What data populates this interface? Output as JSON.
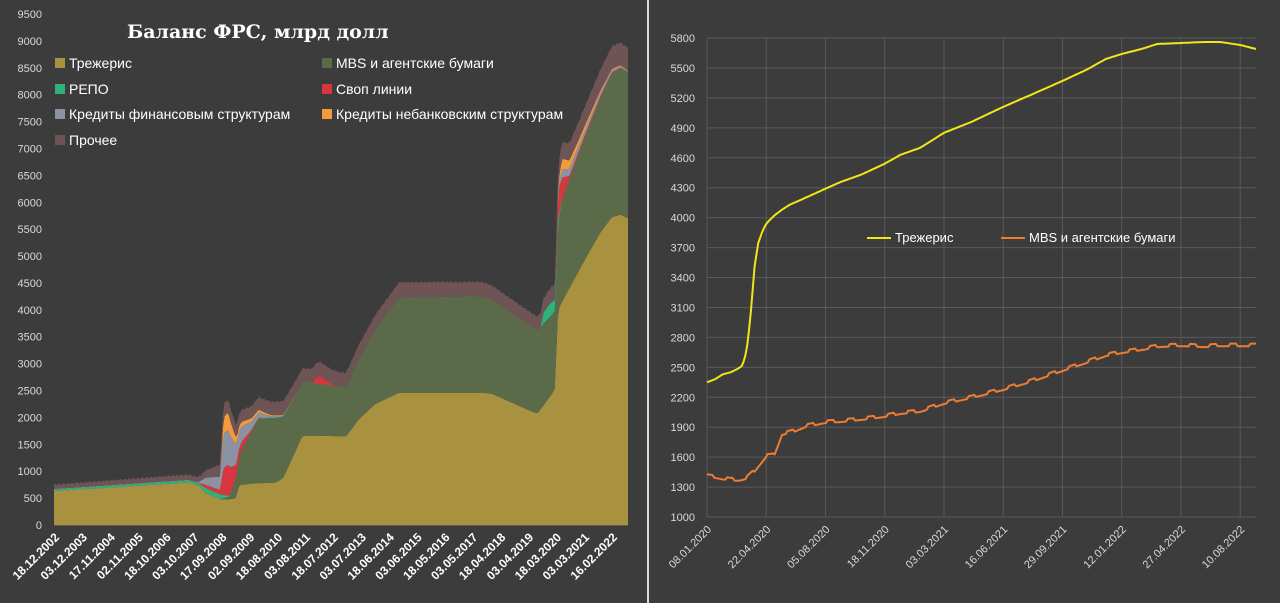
{
  "colors": {
    "background": "#3c3c3c",
    "treasuries": "#a89240",
    "mbs": "#5b6b4a",
    "repo": "#2fb27a",
    "swaps": "#d8363e",
    "fin_credits": "#8a92a3",
    "nonbank_credits": "#f39a3c",
    "other": "#6f5456",
    "yellow_line": "#f0e61a",
    "orange_line": "#ec7d31"
  },
  "chart_data": [
    {
      "type": "area",
      "stacked": true,
      "title": "Баланс ФРС, млрд долл",
      "legend_placement": "top-left",
      "ylim": [
        0,
        9500
      ],
      "yticks": [
        "0",
        "500",
        "1000",
        "1500",
        "2000",
        "2500",
        "3000",
        "3500",
        "4000",
        "4500",
        "5000",
        "5500",
        "6000",
        "6500",
        "7000",
        "7500",
        "8000",
        "8500",
        "9000",
        "9500"
      ],
      "xlim": [
        "2002-12-18",
        "2022-09-07"
      ],
      "xticks": [
        {
          "label": "18.12.2002",
          "date": "2002-12-18"
        },
        {
          "label": "03.12.2003",
          "date": "2003-12-03"
        },
        {
          "label": "17.11.2004",
          "date": "2004-11-17"
        },
        {
          "label": "02.11.2005",
          "date": "2005-11-02"
        },
        {
          "label": "18.10.2006",
          "date": "2006-10-18"
        },
        {
          "label": "03.10.2007",
          "date": "2007-10-03"
        },
        {
          "label": "17.09.2008",
          "date": "2008-09-17"
        },
        {
          "label": "02.09.2009",
          "date": "2009-09-02"
        },
        {
          "label": "18.08.2010",
          "date": "2010-08-18"
        },
        {
          "label": "03.08.2011",
          "date": "2011-08-03"
        },
        {
          "label": "18.07.2012",
          "date": "2012-07-18"
        },
        {
          "label": "03.07.2013",
          "date": "2013-07-03"
        },
        {
          "label": "18.06.2014",
          "date": "2014-06-18"
        },
        {
          "label": "03.06.2015",
          "date": "2015-06-03"
        },
        {
          "label": "18.05.2016",
          "date": "2016-05-18"
        },
        {
          "label": "03.05.2017",
          "date": "2017-05-03"
        },
        {
          "label": "18.04.2018",
          "date": "2018-04-18"
        },
        {
          "label": "03.04.2019",
          "date": "2019-04-03"
        },
        {
          "label": "18.03.2020",
          "date": "2020-03-18"
        },
        {
          "label": "03.03.2021",
          "date": "2021-03-03"
        },
        {
          "label": "16.02.2022",
          "date": "2022-02-16"
        }
      ],
      "series": [
        {
          "name": "Трежерис",
          "key": "treasuries",
          "points": [
            [
              "2002-12-18",
              630
            ],
            [
              "2007-08-01",
              790
            ],
            [
              "2007-12-01",
              740
            ],
            [
              "2008-03-01",
              600
            ],
            [
              "2008-09-01",
              480
            ],
            [
              "2009-01-01",
              480
            ],
            [
              "2009-03-15",
              500
            ],
            [
              "2009-05-01",
              740
            ],
            [
              "2009-10-01",
              770
            ],
            [
              "2010-08-01",
              790
            ],
            [
              "2010-11-01",
              870
            ],
            [
              "2011-06-30",
              1650
            ],
            [
              "2011-10-01",
              1660
            ],
            [
              "2012-12-31",
              1650
            ],
            [
              "2013-06-01",
              1950
            ],
            [
              "2014-01-01",
              2250
            ],
            [
              "2014-10-29",
              2460
            ],
            [
              "2017-09-01",
              2460
            ],
            [
              "2018-01-01",
              2440
            ],
            [
              "2019-06-01",
              2100
            ],
            [
              "2019-08-01",
              2080
            ],
            [
              "2019-10-01",
              2200
            ],
            [
              "2020-02-01",
              2450
            ],
            [
              "2020-03-11",
              2560
            ],
            [
              "2020-03-18",
              3050
            ],
            [
              "2020-04-01",
              3800
            ],
            [
              "2020-05-01",
              4050
            ],
            [
              "2020-06-01",
              4150
            ],
            [
              "2021-03-03",
              4900
            ],
            [
              "2021-10-01",
              5450
            ],
            [
              "2022-02-16",
              5720
            ],
            [
              "2022-06-01",
              5770
            ],
            [
              "2022-09-07",
              5700
            ]
          ]
        },
        {
          "name": "MBS и агентские бумаги",
          "key": "mbs",
          "points": [
            [
              "2002-12-18",
              0
            ],
            [
              "2008-09-01",
              0
            ],
            [
              "2009-01-01",
              50
            ],
            [
              "2009-06-01",
              650
            ],
            [
              "2010-01-01",
              1200
            ],
            [
              "2010-08-01",
              1200
            ],
            [
              "2011-06-01",
              1000
            ],
            [
              "2012-12-31",
              900
            ],
            [
              "2014-10-29",
              1760
            ],
            [
              "2017-09-01",
              1790
            ],
            [
              "2019-08-01",
              1550
            ],
            [
              "2020-03-11",
              1450
            ],
            [
              "2020-03-18",
              1400
            ],
            [
              "2020-06-01",
              1900
            ],
            [
              "2021-03-03",
              2250
            ],
            [
              "2022-02-16",
              2670
            ],
            [
              "2022-06-01",
              2720
            ],
            [
              "2022-09-07",
              2720
            ]
          ]
        },
        {
          "name": "РЕПО",
          "key": "repo",
          "points": [
            [
              "2002-12-18",
              30
            ],
            [
              "2007-12-01",
              40
            ],
            [
              "2008-03-01",
              90
            ],
            [
              "2008-09-01",
              90
            ],
            [
              "2008-12-01",
              30
            ],
            [
              "2009-03-01",
              10
            ],
            [
              "2019-09-15",
              0
            ],
            [
              "2019-10-01",
              200
            ],
            [
              "2019-12-31",
              250
            ],
            [
              "2020-03-11",
              200
            ],
            [
              "2020-03-18",
              240
            ],
            [
              "2020-04-15",
              160
            ],
            [
              "2020-06-01",
              10
            ],
            [
              "2022-09-07",
              5
            ]
          ]
        },
        {
          "name": "Своп линии",
          "key": "swaps",
          "points": [
            [
              "2002-12-18",
              0
            ],
            [
              "2007-12-01",
              0
            ],
            [
              "2008-03-01",
              60
            ],
            [
              "2008-09-01",
              80
            ],
            [
              "2008-10-15",
              500
            ],
            [
              "2008-12-15",
              580
            ],
            [
              "2009-04-01",
              200
            ],
            [
              "2009-10-01",
              30
            ],
            [
              "2010-03-01",
              0
            ],
            [
              "2011-11-01",
              0
            ],
            [
              "2011-12-15",
              100
            ],
            [
              "2012-02-01",
              150
            ],
            [
              "2012-07-01",
              30
            ],
            [
              "2012-10-01",
              0
            ],
            [
              "2020-03-11",
              0
            ],
            [
              "2020-03-18",
              200
            ],
            [
              "2020-04-20",
              450
            ],
            [
              "2020-06-01",
              400
            ],
            [
              "2020-09-01",
              60
            ],
            [
              "2022-09-07",
              0
            ]
          ]
        },
        {
          "name": "Кредиты финансовым структурам",
          "key": "fin_credits",
          "points": [
            [
              "2002-12-18",
              10
            ],
            [
              "2007-12-01",
              10
            ],
            [
              "2008-03-01",
              130
            ],
            [
              "2008-09-01",
              250
            ],
            [
              "2008-10-15",
              650
            ],
            [
              "2008-12-15",
              650
            ],
            [
              "2009-04-01",
              350
            ],
            [
              "2009-10-01",
              150
            ],
            [
              "2010-06-01",
              30
            ],
            [
              "2011-06-01",
              0
            ],
            [
              "2020-03-11",
              0
            ],
            [
              "2020-03-18",
              60
            ],
            [
              "2020-06-01",
              150
            ],
            [
              "2021-06-01",
              80
            ],
            [
              "2022-09-07",
              10
            ]
          ]
        },
        {
          "name": "Кредиты небанковским структурам",
          "key": "nonbank_credits",
          "points": [
            [
              "2002-12-18",
              0
            ],
            [
              "2008-09-01",
              0
            ],
            [
              "2008-10-15",
              300
            ],
            [
              "2008-12-15",
              320
            ],
            [
              "2009-04-01",
              100
            ],
            [
              "2009-10-01",
              60
            ],
            [
              "2010-06-01",
              20
            ],
            [
              "2011-06-01",
              0
            ],
            [
              "2020-03-11",
              0
            ],
            [
              "2020-03-18",
              0
            ],
            [
              "2020-06-01",
              200
            ],
            [
              "2021-01-01",
              100
            ],
            [
              "2021-12-01",
              30
            ],
            [
              "2022-09-07",
              10
            ]
          ]
        },
        {
          "name": "Прочее",
          "key": "other",
          "points": [
            [
              "2002-12-18",
              80
            ],
            [
              "2008-01-01",
              100
            ],
            [
              "2008-10-15",
              250
            ],
            [
              "2009-06-01",
              220
            ],
            [
              "2010-08-01",
              250
            ],
            [
              "2014-10-29",
              290
            ],
            [
              "2019-08-01",
              250
            ],
            [
              "2020-03-18",
              300
            ],
            [
              "2021-03-03",
              350
            ],
            [
              "2022-02-16",
              420
            ],
            [
              "2022-09-07",
              430
            ]
          ]
        }
      ]
    },
    {
      "type": "line",
      "legend_placement": "center",
      "ylim": [
        1000,
        5800
      ],
      "yticks": [
        "1000",
        "1300",
        "1600",
        "1900",
        "2200",
        "2500",
        "2800",
        "3100",
        "3400",
        "3700",
        "4000",
        "4300",
        "4600",
        "4900",
        "5200",
        "5500",
        "5800"
      ],
      "xlim": [
        "2020-01-08",
        "2022-09-07"
      ],
      "xticks": [
        {
          "label": "08.01.2020",
          "date": "2020-01-08"
        },
        {
          "label": "22.04.2020",
          "date": "2020-04-22"
        },
        {
          "label": "05.08.2020",
          "date": "2020-08-05"
        },
        {
          "label": "18.11.2020",
          "date": "2020-11-18"
        },
        {
          "label": "03.03.2021",
          "date": "2021-03-03"
        },
        {
          "label": "16.06.2021",
          "date": "2021-06-16"
        },
        {
          "label": "29.09.2021",
          "date": "2021-09-29"
        },
        {
          "label": "12.01.2022",
          "date": "2022-01-12"
        },
        {
          "label": "27.04.2022",
          "date": "2022-04-27"
        },
        {
          "label": "10.08.2022",
          "date": "2022-08-10"
        }
      ],
      "series": [
        {
          "name": "Трежерис",
          "key": "yellow_line",
          "points": [
            [
              "2020-01-08",
              2350
            ],
            [
              "2020-01-22",
              2380
            ],
            [
              "2020-02-05",
              2430
            ],
            [
              "2020-02-19",
              2450
            ],
            [
              "2020-03-04",
              2490
            ],
            [
              "2020-03-11",
              2520
            ],
            [
              "2020-03-18",
              2660
            ],
            [
              "2020-03-25",
              3000
            ],
            [
              "2020-04-01",
              3500
            ],
            [
              "2020-04-08",
              3750
            ],
            [
              "2020-04-15",
              3860
            ],
            [
              "2020-04-22",
              3940
            ],
            [
              "2020-05-06",
              4020
            ],
            [
              "2020-05-20",
              4080
            ],
            [
              "2020-06-03",
              4130
            ],
            [
              "2020-07-01",
              4200
            ],
            [
              "2020-08-05",
              4290
            ],
            [
              "2020-09-02",
              4360
            ],
            [
              "2020-10-07",
              4430
            ],
            [
              "2020-11-18",
              4540
            ],
            [
              "2020-12-16",
              4630
            ],
            [
              "2021-01-20",
              4700
            ],
            [
              "2021-03-03",
              4850
            ],
            [
              "2021-04-21",
              4960
            ],
            [
              "2021-06-16",
              5110
            ],
            [
              "2021-08-04",
              5230
            ],
            [
              "2021-09-29",
              5370
            ],
            [
              "2021-11-10",
              5480
            ],
            [
              "2021-12-15",
              5590
            ],
            [
              "2022-01-12",
              5640
            ],
            [
              "2022-02-16",
              5690
            ],
            [
              "2022-03-16",
              5740
            ],
            [
              "2022-04-27",
              5750
            ],
            [
              "2022-06-08",
              5760
            ],
            [
              "2022-07-06",
              5760
            ],
            [
              "2022-08-10",
              5730
            ],
            [
              "2022-09-07",
              5690
            ]
          ]
        },
        {
          "name": "MBS и агентские бумаги",
          "key": "orange_line",
          "points": [
            [
              "2020-01-08",
              1410
            ],
            [
              "2020-01-22",
              1400
            ],
            [
              "2020-02-05",
              1385
            ],
            [
              "2020-02-19",
              1375
            ],
            [
              "2020-03-04",
              1370
            ],
            [
              "2020-03-18",
              1390
            ],
            [
              "2020-04-01",
              1460
            ],
            [
              "2020-04-22",
              1610
            ],
            [
              "2020-05-06",
              1620
            ],
            [
              "2020-05-20",
              1830
            ],
            [
              "2020-06-10",
              1860
            ],
            [
              "2020-07-01",
              1910
            ],
            [
              "2020-08-05",
              1950
            ],
            [
              "2020-09-02",
              1960
            ],
            [
              "2020-10-07",
              1980
            ],
            [
              "2020-11-18",
              2010
            ],
            [
              "2020-12-16",
              2040
            ],
            [
              "2021-01-20",
              2060
            ],
            [
              "2021-03-03",
              2140
            ],
            [
              "2021-04-21",
              2200
            ],
            [
              "2021-06-16",
              2280
            ],
            [
              "2021-08-04",
              2360
            ],
            [
              "2021-09-29",
              2470
            ],
            [
              "2021-11-10",
              2550
            ],
            [
              "2021-12-15",
              2620
            ],
            [
              "2022-01-12",
              2650
            ],
            [
              "2022-02-16",
              2680
            ],
            [
              "2022-03-16",
              2710
            ],
            [
              "2022-04-27",
              2720
            ],
            [
              "2022-06-08",
              2710
            ],
            [
              "2022-07-06",
              2720
            ],
            [
              "2022-08-10",
              2720
            ],
            [
              "2022-09-07",
              2720
            ]
          ]
        }
      ]
    }
  ]
}
